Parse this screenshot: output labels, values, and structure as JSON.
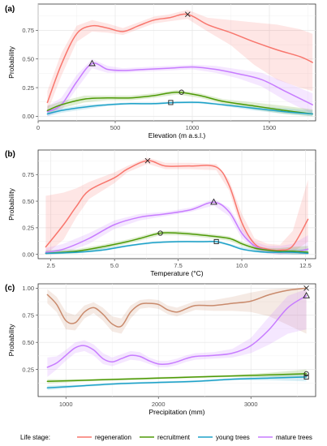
{
  "legend": {
    "title": "Life stage:",
    "entries": [
      {
        "name": "regeneration",
        "color": "#F8766D"
      },
      {
        "name": "recruitment",
        "color": "#4E9A06"
      },
      {
        "name": "young trees",
        "color": "#1FA2C8"
      },
      {
        "name": "mature trees",
        "color": "#C77CFF"
      }
    ]
  },
  "chart_data": [
    {
      "type": "line",
      "panel_label": "(a)",
      "xlabel": "Elevation (m a.s.l.)",
      "ylabel": "Probability",
      "xlim": [
        0,
        1800
      ],
      "ylim": [
        -0.04,
        0.98
      ],
      "xticks": [
        0,
        500,
        1000,
        1500
      ],
      "yticks": [
        0,
        0.25,
        0.5,
        0.75
      ],
      "xtick_labels": [
        "0",
        "500",
        "1000",
        "1500"
      ],
      "ytick_labels": [
        "0.00",
        "0.25",
        "0.50",
        "0.75"
      ],
      "grid": true,
      "series": [
        {
          "name": "regeneration",
          "color": "#F8766D",
          "marker": "x",
          "x": [
            60,
            150,
            250,
            350,
            450,
            550,
            650,
            750,
            850,
            970,
            1100,
            1250,
            1400,
            1550,
            1700,
            1780
          ],
          "y": [
            0.12,
            0.45,
            0.72,
            0.79,
            0.77,
            0.74,
            0.79,
            0.84,
            0.86,
            0.89,
            0.8,
            0.73,
            0.65,
            0.58,
            0.52,
            0.47
          ],
          "lower": [
            0.04,
            0.35,
            0.65,
            0.74,
            0.73,
            0.71,
            0.76,
            0.81,
            0.83,
            0.85,
            0.74,
            0.62,
            0.45,
            0.32,
            0.25,
            0.22
          ],
          "upper": [
            0.22,
            0.55,
            0.79,
            0.84,
            0.81,
            0.77,
            0.82,
            0.87,
            0.89,
            0.93,
            0.86,
            0.84,
            0.82,
            0.8,
            0.76,
            0.72
          ],
          "marker_point": [
            970,
            0.89
          ]
        },
        {
          "name": "mature trees",
          "color": "#C77CFF",
          "marker": "triangle",
          "x": [
            60,
            150,
            250,
            350,
            450,
            550,
            700,
            850,
            1000,
            1150,
            1300,
            1450,
            1600,
            1780
          ],
          "y": [
            0.04,
            0.1,
            0.3,
            0.46,
            0.41,
            0.4,
            0.41,
            0.42,
            0.43,
            0.41,
            0.37,
            0.32,
            0.22,
            0.1
          ],
          "lower": [
            0.0,
            0.05,
            0.24,
            0.42,
            0.38,
            0.38,
            0.39,
            0.4,
            0.41,
            0.38,
            0.33,
            0.26,
            0.14,
            0.02
          ],
          "upper": [
            0.09,
            0.16,
            0.36,
            0.5,
            0.44,
            0.42,
            0.43,
            0.44,
            0.45,
            0.44,
            0.41,
            0.38,
            0.3,
            0.2
          ],
          "marker_point": [
            350,
            0.46
          ]
        },
        {
          "name": "recruitment",
          "color": "#4E9A06",
          "marker": "circle",
          "x": [
            60,
            150,
            300,
            450,
            600,
            750,
            900,
            1050,
            1200,
            1400,
            1600,
            1780
          ],
          "y": [
            0.05,
            0.1,
            0.15,
            0.16,
            0.16,
            0.18,
            0.21,
            0.18,
            0.13,
            0.09,
            0.05,
            0.02
          ],
          "lower": [
            0.02,
            0.07,
            0.12,
            0.14,
            0.14,
            0.16,
            0.19,
            0.16,
            0.11,
            0.06,
            0.02,
            0.0
          ],
          "upper": [
            0.09,
            0.13,
            0.18,
            0.18,
            0.18,
            0.2,
            0.23,
            0.2,
            0.15,
            0.12,
            0.09,
            0.06
          ],
          "marker_point": [
            930,
            0.21
          ]
        },
        {
          "name": "young trees",
          "color": "#1FA2C8",
          "marker": "square",
          "x": [
            60,
            150,
            300,
            450,
            600,
            750,
            900,
            1050,
            1200,
            1400,
            1600,
            1780
          ],
          "y": [
            0.02,
            0.05,
            0.08,
            0.1,
            0.11,
            0.11,
            0.12,
            0.12,
            0.1,
            0.07,
            0.04,
            0.02
          ],
          "lower": [
            0.0,
            0.03,
            0.06,
            0.09,
            0.1,
            0.1,
            0.11,
            0.11,
            0.09,
            0.05,
            0.02,
            0.0
          ],
          "upper": [
            0.05,
            0.07,
            0.1,
            0.11,
            0.12,
            0.12,
            0.13,
            0.13,
            0.11,
            0.09,
            0.07,
            0.05
          ],
          "marker_point": [
            860,
            0.12
          ]
        }
      ]
    },
    {
      "type": "line",
      "panel_label": "(b)",
      "xlabel": "Temperature (°C)",
      "ylabel": "Probability",
      "xlim": [
        2.0,
        12.9
      ],
      "ylim": [
        -0.04,
        0.98
      ],
      "xticks": [
        2.5,
        5.0,
        7.5,
        10.0,
        12.5
      ],
      "yticks": [
        0,
        0.25,
        0.5,
        0.75
      ],
      "xtick_labels": [
        "2.5",
        "5.0",
        "7.5",
        "10.0",
        "12.5"
      ],
      "ytick_labels": [
        "0.00",
        "0.25",
        "0.50",
        "0.75"
      ],
      "grid": true,
      "series": [
        {
          "name": "regeneration",
          "color": "#F8766D",
          "marker": "x",
          "x": [
            2.3,
            3.0,
            3.5,
            4.0,
            5.0,
            5.5,
            6.3,
            7.0,
            8.0,
            9.0,
            9.5,
            10.0,
            10.5,
            11.0,
            11.5,
            12.0,
            12.6
          ],
          "y": [
            0.07,
            0.28,
            0.45,
            0.6,
            0.72,
            0.8,
            0.88,
            0.83,
            0.83,
            0.82,
            0.65,
            0.3,
            0.1,
            0.05,
            0.04,
            0.08,
            0.33
          ],
          "lower": [
            0.0,
            0.14,
            0.35,
            0.52,
            0.67,
            0.77,
            0.85,
            0.8,
            0.8,
            0.79,
            0.6,
            0.22,
            0.05,
            0.01,
            0.0,
            0.02,
            0.12
          ],
          "upper": [
            0.55,
            0.58,
            0.62,
            0.68,
            0.77,
            0.83,
            0.91,
            0.86,
            0.86,
            0.85,
            0.7,
            0.38,
            0.15,
            0.1,
            0.09,
            0.22,
            0.7
          ],
          "marker_point": [
            6.3,
            0.88
          ]
        },
        {
          "name": "mature trees",
          "color": "#C77CFF",
          "marker": "triangle",
          "x": [
            2.3,
            3.0,
            4.0,
            5.0,
            6.0,
            7.0,
            8.0,
            8.9,
            9.5,
            10.0,
            10.5,
            11.0,
            11.5,
            12.0,
            12.6
          ],
          "y": [
            0.02,
            0.05,
            0.15,
            0.28,
            0.35,
            0.38,
            0.42,
            0.49,
            0.4,
            0.2,
            0.08,
            0.04,
            0.03,
            0.02,
            0.05
          ],
          "lower": [
            0.0,
            0.01,
            0.1,
            0.24,
            0.32,
            0.36,
            0.4,
            0.46,
            0.36,
            0.15,
            0.05,
            0.01,
            0.0,
            0.0,
            0.0
          ],
          "upper": [
            0.06,
            0.1,
            0.2,
            0.32,
            0.38,
            0.4,
            0.44,
            0.52,
            0.44,
            0.25,
            0.12,
            0.08,
            0.08,
            0.1,
            0.18
          ],
          "marker_point": [
            8.9,
            0.49
          ]
        },
        {
          "name": "recruitment",
          "color": "#4E9A06",
          "marker": "circle",
          "x": [
            2.3,
            3.5,
            4.5,
            5.5,
            6.0,
            6.8,
            7.5,
            8.5,
            9.5,
            10.0,
            10.5,
            11.0,
            11.5,
            12.0,
            12.6
          ],
          "y": [
            0.01,
            0.03,
            0.07,
            0.12,
            0.15,
            0.2,
            0.2,
            0.18,
            0.15,
            0.1,
            0.06,
            0.04,
            0.03,
            0.03,
            0.02
          ],
          "lower": [
            0.0,
            0.01,
            0.05,
            0.1,
            0.13,
            0.18,
            0.18,
            0.16,
            0.13,
            0.08,
            0.04,
            0.02,
            0.01,
            0.0,
            0.0
          ],
          "upper": [
            0.04,
            0.05,
            0.09,
            0.14,
            0.17,
            0.22,
            0.22,
            0.2,
            0.17,
            0.12,
            0.08,
            0.06,
            0.06,
            0.07,
            0.08
          ],
          "marker_point": [
            6.8,
            0.2
          ]
        },
        {
          "name": "young trees",
          "color": "#1FA2C8",
          "marker": "square",
          "x": [
            2.3,
            3.5,
            4.5,
            5.5,
            6.5,
            7.5,
            8.5,
            9.0,
            9.5,
            10.0,
            10.5,
            11.0,
            11.5,
            12.0,
            12.6
          ],
          "y": [
            0.01,
            0.02,
            0.04,
            0.08,
            0.11,
            0.12,
            0.12,
            0.12,
            0.09,
            0.05,
            0.03,
            0.02,
            0.02,
            0.02,
            0.01
          ],
          "lower": [
            0.0,
            0.01,
            0.03,
            0.07,
            0.1,
            0.11,
            0.11,
            0.11,
            0.08,
            0.04,
            0.02,
            0.01,
            0.0,
            0.0,
            0.0
          ],
          "upper": [
            0.03,
            0.04,
            0.06,
            0.09,
            0.12,
            0.13,
            0.13,
            0.13,
            0.1,
            0.07,
            0.05,
            0.04,
            0.04,
            0.05,
            0.05
          ],
          "marker_point": [
            9.0,
            0.12
          ]
        }
      ]
    },
    {
      "type": "line",
      "panel_label": "(c)",
      "xlabel": "Precipitation (mm)",
      "ylabel": "Probability",
      "xlim": [
        700,
        3700
      ],
      "ylim": [
        0.0,
        1.04
      ],
      "xticks": [
        1000,
        2000,
        3000
      ],
      "yticks": [
        0.25,
        0.5,
        0.75,
        1.0
      ],
      "xtick_labels": [
        "1000",
        "2000",
        "3000"
      ],
      "ytick_labels": [
        "0.25",
        "0.50",
        "0.75",
        "1.00"
      ],
      "grid": true,
      "series": [
        {
          "name": "regeneration",
          "color": "#C98A6C",
          "marker": "x",
          "x": [
            800,
            900,
            1000,
            1100,
            1200,
            1300,
            1400,
            1500,
            1600,
            1700,
            1800,
            1900,
            2000,
            2100,
            2200,
            2300,
            2400,
            2600,
            2800,
            3000,
            3200,
            3400,
            3600
          ],
          "y": [
            0.94,
            0.85,
            0.7,
            0.68,
            0.78,
            0.82,
            0.76,
            0.67,
            0.65,
            0.78,
            0.85,
            0.86,
            0.85,
            0.8,
            0.78,
            0.81,
            0.84,
            0.84,
            0.86,
            0.88,
            0.94,
            0.98,
            1.0
          ],
          "lower": [
            0.86,
            0.78,
            0.62,
            0.61,
            0.72,
            0.77,
            0.7,
            0.6,
            0.58,
            0.72,
            0.81,
            0.82,
            0.81,
            0.76,
            0.74,
            0.77,
            0.8,
            0.79,
            0.79,
            0.78,
            0.74,
            0.66,
            0.58
          ],
          "upper": [
            0.99,
            0.92,
            0.78,
            0.75,
            0.84,
            0.87,
            0.82,
            0.74,
            0.72,
            0.84,
            0.89,
            0.9,
            0.89,
            0.84,
            0.82,
            0.85,
            0.88,
            0.89,
            0.92,
            0.96,
            0.99,
            1.0,
            1.0
          ],
          "marker_point": [
            3600,
            1.0
          ]
        },
        {
          "name": "mature trees",
          "color": "#C77CFF",
          "marker": "triangle",
          "x": [
            800,
            900,
            1000,
            1100,
            1200,
            1300,
            1400,
            1500,
            1600,
            1700,
            1800,
            1900,
            2000,
            2100,
            2200,
            2300,
            2400,
            2600,
            2800,
            3000,
            3200,
            3400,
            3600
          ],
          "y": [
            0.27,
            0.31,
            0.38,
            0.45,
            0.47,
            0.43,
            0.35,
            0.32,
            0.35,
            0.38,
            0.37,
            0.33,
            0.3,
            0.3,
            0.32,
            0.35,
            0.37,
            0.38,
            0.4,
            0.47,
            0.62,
            0.82,
            0.93
          ],
          "lower": [
            0.18,
            0.25,
            0.33,
            0.4,
            0.42,
            0.38,
            0.3,
            0.28,
            0.31,
            0.34,
            0.33,
            0.3,
            0.27,
            0.27,
            0.29,
            0.32,
            0.34,
            0.35,
            0.36,
            0.4,
            0.48,
            0.58,
            0.62
          ],
          "upper": [
            0.36,
            0.37,
            0.43,
            0.5,
            0.52,
            0.48,
            0.4,
            0.36,
            0.39,
            0.42,
            0.41,
            0.36,
            0.33,
            0.33,
            0.35,
            0.38,
            0.4,
            0.41,
            0.44,
            0.54,
            0.74,
            0.93,
            0.99
          ],
          "marker_point": [
            3600,
            0.93
          ]
        },
        {
          "name": "recruitment",
          "color": "#4E9A06",
          "marker": "circle",
          "x": [
            800,
            1200,
            1600,
            2000,
            2400,
            2800,
            3200,
            3600
          ],
          "y": [
            0.14,
            0.15,
            0.16,
            0.17,
            0.18,
            0.19,
            0.2,
            0.21
          ],
          "lower": [
            0.12,
            0.14,
            0.15,
            0.16,
            0.17,
            0.18,
            0.18,
            0.17
          ],
          "upper": [
            0.16,
            0.16,
            0.17,
            0.18,
            0.19,
            0.2,
            0.22,
            0.25
          ],
          "marker_point": [
            3600,
            0.21
          ]
        },
        {
          "name": "young trees",
          "color": "#1FA2C8",
          "marker": "square",
          "x": [
            800,
            1200,
            1600,
            2000,
            2400,
            2800,
            3200,
            3600
          ],
          "y": [
            0.08,
            0.1,
            0.12,
            0.13,
            0.14,
            0.16,
            0.17,
            0.18
          ],
          "lower": [
            0.06,
            0.09,
            0.11,
            0.12,
            0.13,
            0.15,
            0.15,
            0.14
          ],
          "upper": [
            0.1,
            0.11,
            0.13,
            0.14,
            0.15,
            0.17,
            0.19,
            0.22
          ],
          "marker_point": [
            3600,
            0.18
          ]
        }
      ]
    }
  ]
}
